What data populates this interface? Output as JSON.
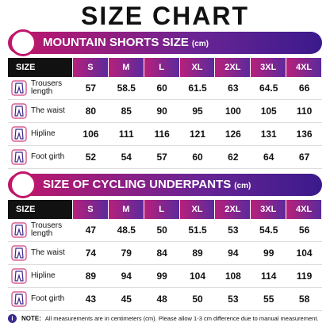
{
  "title": "SIZE CHART",
  "sections": [
    {
      "heading": "MOUNTAIN SHORTS SIZE",
      "unit": "(cm)",
      "table": {
        "header": [
          "SIZE",
          "S",
          "M",
          "L",
          "XL",
          "2XL",
          "3XL",
          "4XL"
        ],
        "rows": [
          {
            "label": "Trousers length",
            "values": [
              57,
              58.5,
              60,
              61.5,
              63,
              64.5,
              66
            ]
          },
          {
            "label": "The waist",
            "values": [
              80,
              85,
              90,
              95,
              100,
              105,
              110
            ]
          },
          {
            "label": "Hipline",
            "values": [
              106,
              111,
              116,
              121,
              126,
              131,
              136
            ]
          },
          {
            "label": "Foot girth",
            "values": [
              52,
              54,
              57,
              60,
              62,
              64,
              67
            ]
          }
        ]
      }
    },
    {
      "heading": "SIZE OF CYCLING UNDERPANTS",
      "unit": "(cm)",
      "table": {
        "header": [
          "SIZE",
          "S",
          "M",
          "L",
          "XL",
          "2XL",
          "3XL",
          "4XL"
        ],
        "rows": [
          {
            "label": "Trousers length",
            "values": [
              47,
              48.5,
              50,
              51.5,
              53,
              54.5,
              56
            ]
          },
          {
            "label": "The waist",
            "values": [
              74,
              79,
              84,
              89,
              94,
              99,
              104
            ]
          },
          {
            "label": "Hipline",
            "values": [
              89,
              94,
              99,
              104,
              108,
              114,
              119
            ]
          },
          {
            "label": "Foot girth",
            "values": [
              43,
              45,
              48,
              50,
              53,
              55,
              58
            ]
          }
        ]
      }
    }
  ],
  "note": {
    "label": "NOTE:",
    "text": "All measurements are in centimeters (cm). Please allow 1-3 cm difference due to manual measurement."
  }
}
